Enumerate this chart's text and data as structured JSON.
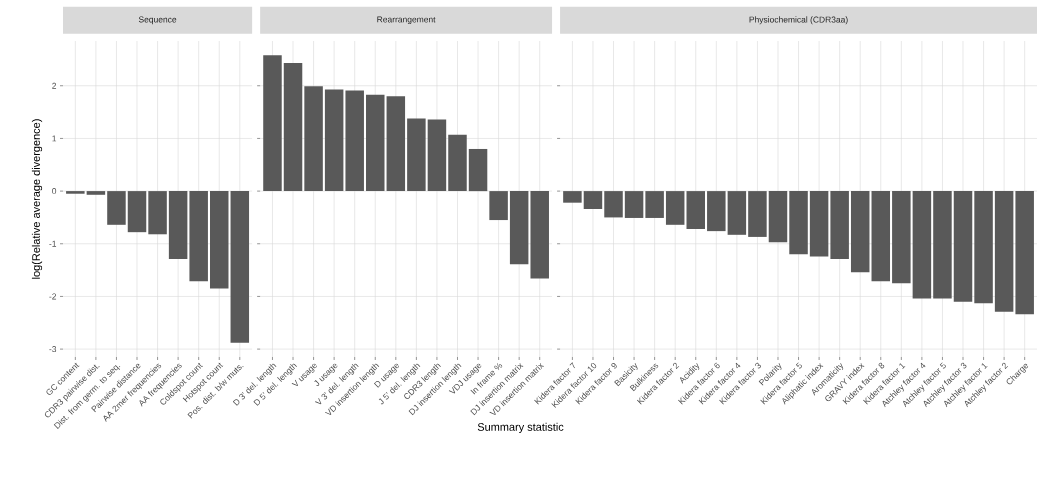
{
  "chart_data": [
    {
      "type": "bar",
      "title": "Sequence",
      "ylabel": "log(Relative average divergence)",
      "color": "#595959",
      "grid": true,
      "categories": [
        "GC content",
        "CDR3 pairwise dist.",
        "Dist. from germ. to seq.",
        "Pairwise distance",
        "AA 2mer frequencies",
        "AA frequencies",
        "Coldspot count",
        "Hotspot count",
        "Pos. dist. b/w muts."
      ],
      "values": [
        -0.05,
        -0.07,
        -0.64,
        -0.78,
        -0.82,
        -1.29,
        -1.71,
        -1.85,
        -2.88
      ],
      "ylim": [
        -3.15,
        2.85
      ],
      "yticks": [
        -3,
        -2,
        -1,
        0,
        1,
        2
      ]
    },
    {
      "type": "bar",
      "title": "Rearrangement",
      "xlabel": "Summary statistic",
      "color": "#595959",
      "grid": true,
      "tick_labels": "x",
      "categories": [
        "D 3' del. length",
        "D 5' del. length",
        "V usage",
        "J usage",
        "V 3' del. length",
        "VD insertion length",
        "D usage",
        "J 5' del. length",
        "CDR3 length",
        "DJ insertion length",
        "VDJ usage",
        "In frame %",
        "DJ insertion matrix",
        "VD insertion matrix"
      ],
      "values": [
        2.58,
        2.43,
        1.99,
        1.93,
        1.91,
        1.83,
        1.8,
        1.38,
        1.36,
        1.07,
        0.8,
        -0.55,
        -1.39,
        -1.66
      ],
      "ylim": [
        -3.15,
        2.85
      ],
      "yticks": [
        -3,
        -2,
        -1,
        0,
        1,
        2
      ]
    },
    {
      "type": "bar",
      "title": "Physiochemical (CDR3aa)",
      "color": "#595959",
      "grid": true,
      "tick_labels": "x",
      "categories": [
        "Kidera factor 7",
        "Kidera factor 10",
        "Kidera factor 9",
        "Basicity",
        "Bulkiness",
        "Kidera factor 2",
        "Acidity",
        "Kidera factor 6",
        "Kidera factor 4",
        "Kidera factor 3",
        "Polarity",
        "Kidera factor 5",
        "Aliphatic index",
        "Aromaticity",
        "GRAVY index",
        "Kidera factor 8",
        "Kidera factor 1",
        "Atchley factor 4",
        "Atchley factor 5",
        "Atchley factor 3",
        "Atchley factor 1",
        "Atchley factor 2",
        "Charge"
      ],
      "values": [
        -0.22,
        -0.34,
        -0.5,
        -0.51,
        -0.51,
        -0.64,
        -0.72,
        -0.76,
        -0.83,
        -0.87,
        -0.97,
        -1.2,
        -1.24,
        -1.29,
        -1.54,
        -1.71,
        -1.75,
        -2.04,
        -2.04,
        -2.1,
        -2.13,
        -2.29,
        -2.34
      ],
      "ylim": [
        -3.15,
        2.85
      ],
      "yticks": [
        -3,
        -2,
        -1,
        0,
        1,
        2
      ]
    }
  ]
}
